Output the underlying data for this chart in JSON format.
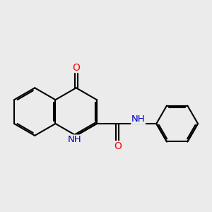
{
  "background_color": "#ebebeb",
  "bond_color": "#000000",
  "bond_width": 1.5,
  "atom_colors": {
    "O": "#ff0000",
    "N": "#0000bb",
    "C": "#000000"
  },
  "font_size": 10,
  "fig_size": [
    3.0,
    3.0
  ],
  "dpi": 100,
  "bl": 1.0
}
